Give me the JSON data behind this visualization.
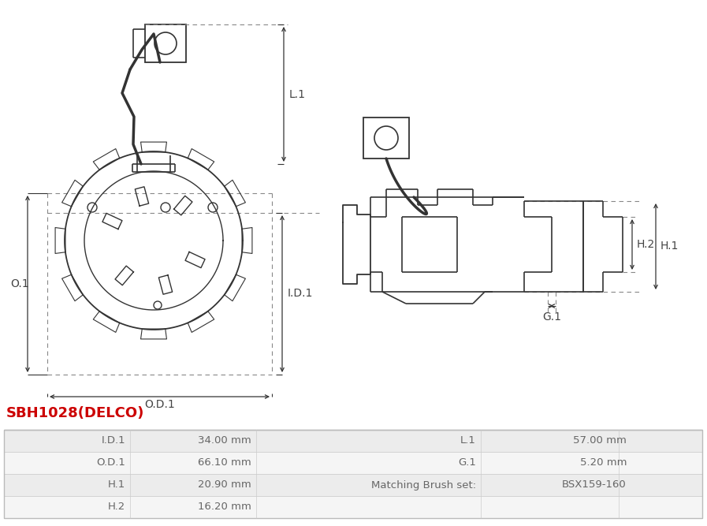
{
  "title": "SBH1028(DELCO)",
  "title_color": "#cc0000",
  "table_data": [
    [
      "I.D.1",
      "34.00 mm",
      "L.1",
      "57.00 mm"
    ],
    [
      "O.D.1",
      "66.10 mm",
      "G.1",
      "5.20 mm"
    ],
    [
      "H.1",
      "20.90 mm",
      "Matching Brush set:",
      "BSX159-160"
    ],
    [
      "H.2",
      "16.20 mm",
      "",
      ""
    ]
  ],
  "table_row_colors": [
    "#ececec",
    "#f5f5f5",
    "#ececec",
    "#f5f5f5"
  ],
  "line_color": "#333333",
  "dashed_color": "#888888",
  "arrow_color": "#333333",
  "dim_text_color": "#444444",
  "table_text_color": "#666666",
  "table_border_color": "#cccccc"
}
